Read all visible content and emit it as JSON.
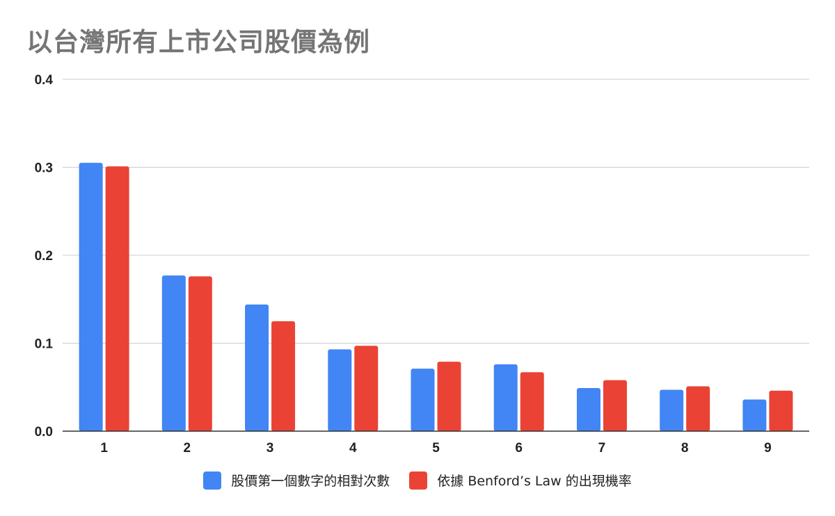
{
  "colors": {
    "series_1": "#4285f4",
    "series_2": "#ea4335",
    "grid": "#cccccc",
    "axis": "#333333",
    "title": "#757575"
  },
  "chart_data": {
    "type": "bar",
    "title": "以台灣所有上市公司股價為例",
    "xlabel": "",
    "ylabel": "",
    "categories": [
      "1",
      "2",
      "3",
      "4",
      "5",
      "6",
      "7",
      "8",
      "9"
    ],
    "series": [
      {
        "name": "股價第一個數字的相對次數",
        "values": [
          0.305,
          0.177,
          0.144,
          0.093,
          0.071,
          0.076,
          0.049,
          0.047,
          0.036
        ]
      },
      {
        "name": "依據 Benford’s Law 的出現機率",
        "values": [
          0.301,
          0.176,
          0.125,
          0.097,
          0.079,
          0.067,
          0.058,
          0.051,
          0.046
        ]
      }
    ],
    "ylim": [
      0,
      0.4
    ],
    "yticks": [
      "0.0",
      "0.1",
      "0.2",
      "0.3",
      "0.4"
    ],
    "grid": true,
    "legend_position": "bottom"
  }
}
